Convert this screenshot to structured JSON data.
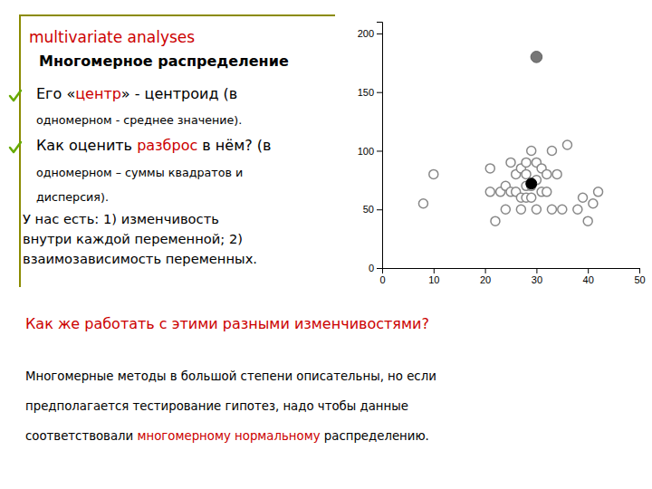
{
  "chart_data": {
    "type": "scatter",
    "title": "multivariate analyses",
    "subtitle": "Многомерное распределение",
    "series": [
      {
        "x": [
          10,
          8,
          21,
          21,
          22,
          23,
          24,
          24,
          25,
          25,
          26,
          26,
          27,
          27,
          27,
          28,
          28,
          28,
          28,
          29,
          29,
          29,
          30,
          30,
          30,
          31,
          31,
          32,
          32,
          33,
          33,
          34,
          35,
          36,
          38,
          39,
          40,
          41,
          42
        ],
        "values": [
          80,
          55,
          65,
          85,
          40,
          65,
          50,
          70,
          65,
          90,
          65,
          80,
          50,
          60,
          85,
          60,
          70,
          80,
          90,
          60,
          70,
          100,
          50,
          75,
          90,
          65,
          85,
          65,
          80,
          100,
          50,
          80,
          50,
          105,
          50,
          60,
          40,
          55,
          65
        ],
        "color": "#888888",
        "marker": "open"
      },
      {
        "x": [
          29
        ],
        "values": [
          72
        ],
        "color": "#000000",
        "marker": "filled"
      },
      {
        "x": [
          30
        ],
        "values": [
          180
        ],
        "color": "#777777",
        "marker": "filled"
      }
    ],
    "xlim": [
      0,
      50
    ],
    "ylim": [
      0,
      210
    ],
    "xticks": [
      0,
      10,
      20,
      30,
      40,
      50
    ],
    "yticks": [
      0,
      50,
      100,
      150,
      200
    ],
    "grid": false,
    "annotations": [
      [
        {
          "text": "Его «",
          "color": "#000000"
        },
        {
          "text": "центр",
          "color": "#cc0000"
        },
        {
          "text": "» - центроид (в",
          "color": "#000000"
        }
      ],
      [
        {
          "text": "одномерном - среднее значение).",
          "color": "#000000"
        }
      ],
      [
        {
          "text": "Как оценить ",
          "color": "#000000"
        },
        {
          "text": "разброс",
          "color": "#cc0000"
        },
        {
          "text": " в нём? (в",
          "color": "#000000"
        }
      ],
      [
        {
          "text": "одномерном – суммы квадратов и",
          "color": "#000000"
        }
      ],
      [
        {
          "text": "дисперсия).",
          "color": "#000000"
        }
      ],
      [
        {
          "text": "У нас есть: 1) изменчивость",
          "color": "#000000"
        }
      ],
      [
        {
          "text": "внутри каждой переменной; 2)",
          "color": "#000000"
        }
      ],
      [
        {
          "text": "взаимозависимость переменных.",
          "color": "#000000"
        }
      ],
      [
        {
          "text": "Как же работать с этими разными изменчивостями?",
          "color": "#cc0000"
        }
      ],
      [
        {
          "text": "Многомерные методы в большой степени описательны, но если",
          "color": "#000000"
        }
      ],
      [
        {
          "text": "предполагается тестирование гипотез, надо чтобы данные",
          "color": "#000000"
        }
      ],
      [
        {
          "text": "соответствовали ",
          "color": "#000000"
        },
        {
          "text": "многомерному нормальному",
          "color": "#cc0000"
        },
        {
          "text": " распределению.",
          "color": "#000000"
        }
      ]
    ]
  }
}
